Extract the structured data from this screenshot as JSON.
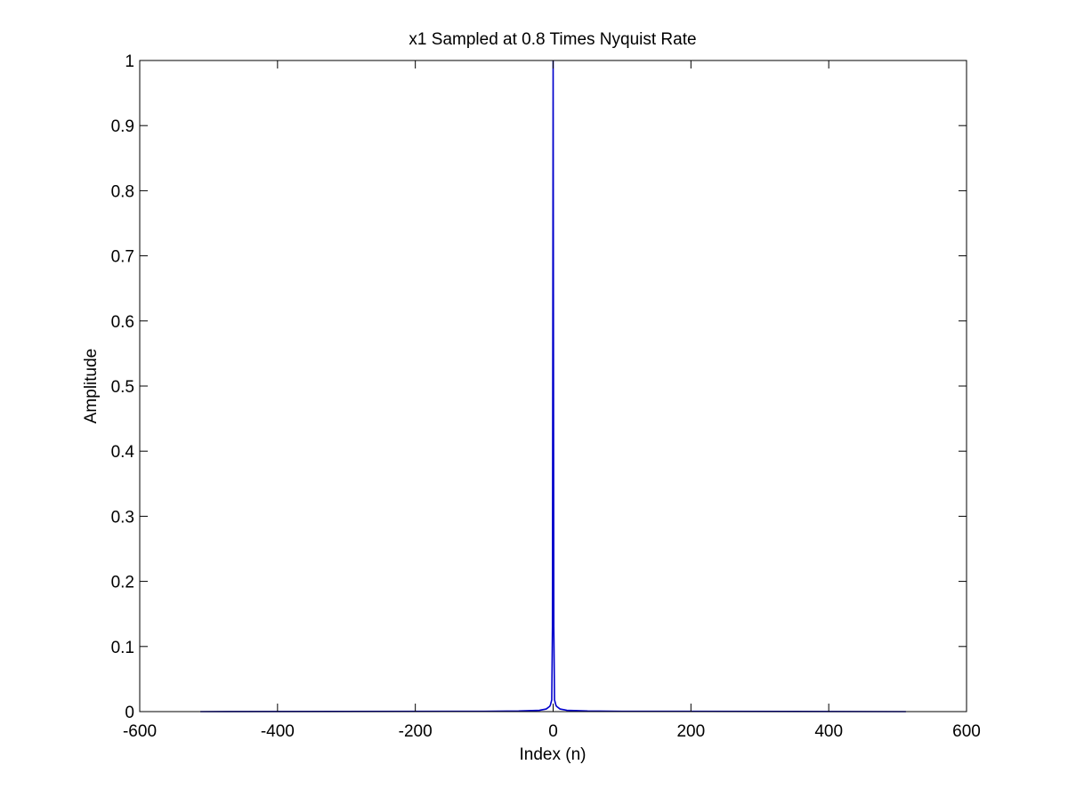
{
  "chart_data": {
    "type": "line",
    "title": "x1 Sampled at 0.8 Times Nyquist Rate",
    "xlabel": "Index (n)",
    "ylabel": "Amplitude",
    "xlim": [
      -600,
      600
    ],
    "ylim": [
      0,
      1
    ],
    "xticks": [
      -600,
      -400,
      -200,
      0,
      200,
      400,
      600
    ],
    "yticks": [
      0,
      0.1,
      0.2,
      0.3,
      0.4,
      0.5,
      0.6,
      0.7,
      0.8,
      0.9,
      1
    ],
    "grid": false,
    "legend": "none",
    "series": [
      {
        "color": "#0000cc",
        "x": [
          -512,
          -100,
          -50,
          -20,
          -10,
          -5,
          -4,
          -3,
          -2,
          -1,
          0,
          1,
          2,
          3,
          4,
          5,
          10,
          20,
          50,
          100,
          512
        ],
        "y": [
          0,
          0.0005,
          0.001,
          0.002,
          0.004,
          0.008,
          0.01,
          0.014,
          0.018,
          0.13,
          1,
          0.13,
          0.018,
          0.014,
          0.01,
          0.008,
          0.004,
          0.002,
          0.001,
          0.0005,
          0
        ]
      }
    ]
  }
}
